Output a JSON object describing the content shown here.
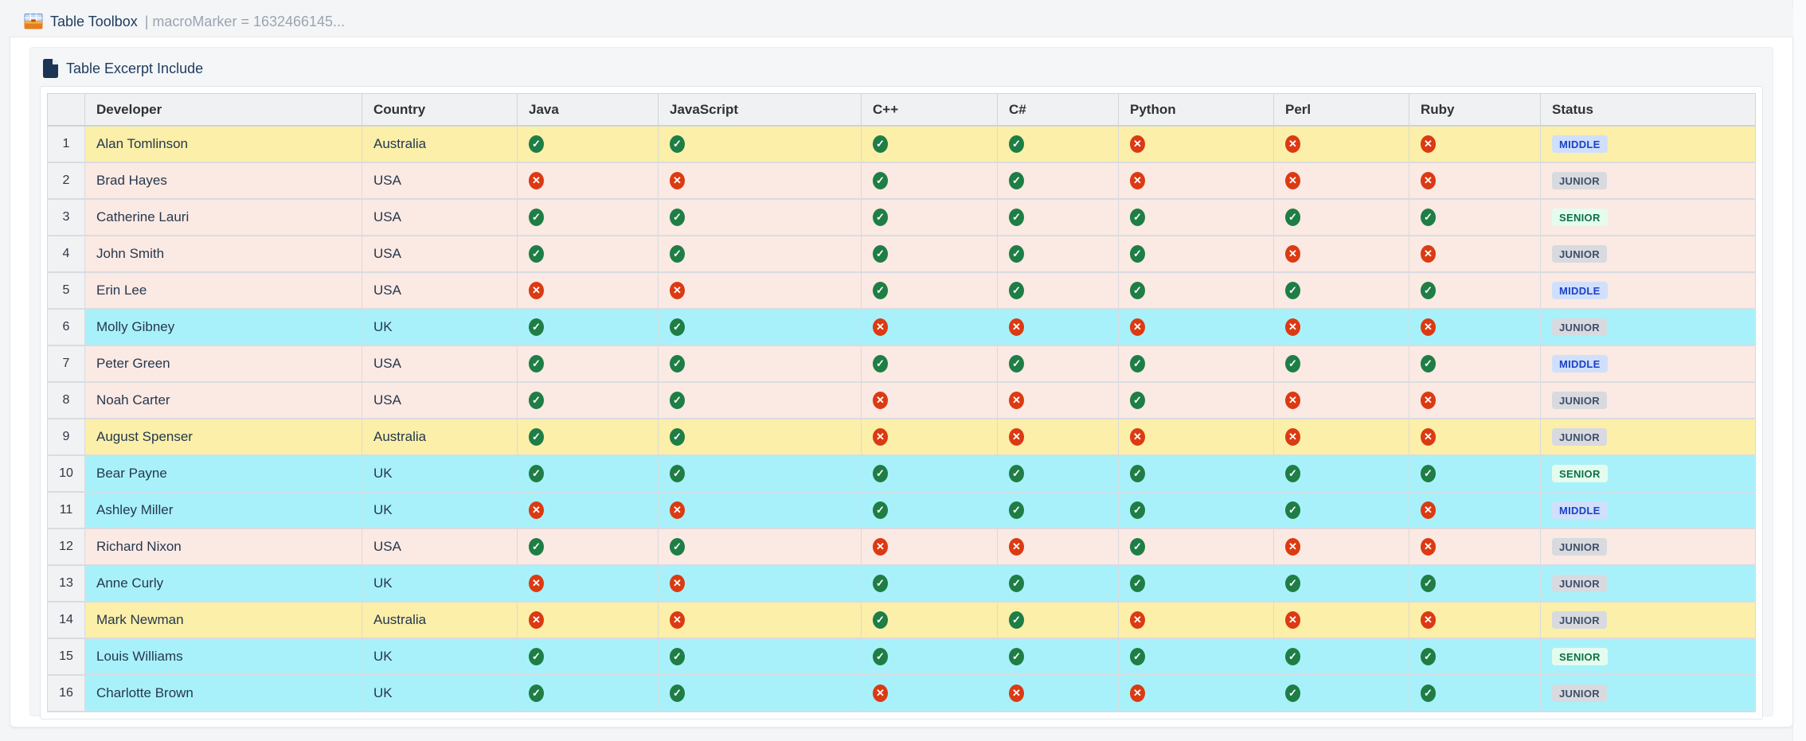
{
  "macro_header": {
    "title": "Table Toolbox",
    "marker": "| macroMarker = 1632466145..."
  },
  "excerpt": {
    "title": "Table Excerpt Include"
  },
  "glyphs": {
    "check": "✓",
    "cross": "✕"
  },
  "colors": {
    "row_yellow": "#FBEFA9",
    "row_pink": "#FBE9E3",
    "row_cyan": "#A9F1FA",
    "check_green": "#1E7E45",
    "cross_red": "#DC3A12",
    "badge_middle_bg": "#D0E0FC",
    "badge_middle_fg": "#1A41C8",
    "badge_junior_bg": "#D8DADF",
    "badge_junior_fg": "#3E4E68",
    "badge_senior_bg": "#E4FCEE",
    "badge_senior_fg": "#0E6F47"
  },
  "table": {
    "columns": [
      {
        "key": "num",
        "label": ""
      },
      {
        "key": "developer",
        "label": "Developer"
      },
      {
        "key": "country",
        "label": "Country"
      },
      {
        "key": "java",
        "label": "Java"
      },
      {
        "key": "javascript",
        "label": "JavaScript"
      },
      {
        "key": "cpp",
        "label": "C++"
      },
      {
        "key": "csharp",
        "label": "C#"
      },
      {
        "key": "python",
        "label": "Python"
      },
      {
        "key": "perl",
        "label": "Perl"
      },
      {
        "key": "ruby",
        "label": "Ruby"
      },
      {
        "key": "status",
        "label": "Status"
      }
    ],
    "skill_keys": [
      "java",
      "javascript",
      "cpp",
      "csharp",
      "python",
      "perl",
      "ruby"
    ],
    "rows": [
      {
        "num": "1",
        "developer": "Alan Tomlinson",
        "country": "Australia",
        "java": true,
        "javascript": true,
        "cpp": true,
        "csharp": true,
        "python": false,
        "perl": false,
        "ruby": false,
        "status": "MIDDLE",
        "highlight": "yellow"
      },
      {
        "num": "2",
        "developer": "Brad Hayes",
        "country": "USA",
        "java": false,
        "javascript": false,
        "cpp": true,
        "csharp": true,
        "python": false,
        "perl": false,
        "ruby": false,
        "status": "JUNIOR",
        "highlight": "pink"
      },
      {
        "num": "3",
        "developer": "Catherine Lauri",
        "country": "USA",
        "java": true,
        "javascript": true,
        "cpp": true,
        "csharp": true,
        "python": true,
        "perl": true,
        "ruby": true,
        "status": "SENIOR",
        "highlight": "pink"
      },
      {
        "num": "4",
        "developer": "John Smith",
        "country": "USA",
        "java": true,
        "javascript": true,
        "cpp": true,
        "csharp": true,
        "python": true,
        "perl": false,
        "ruby": false,
        "status": "JUNIOR",
        "highlight": "pink"
      },
      {
        "num": "5",
        "developer": "Erin Lee",
        "country": "USA",
        "java": false,
        "javascript": false,
        "cpp": true,
        "csharp": true,
        "python": true,
        "perl": true,
        "ruby": true,
        "status": "MIDDLE",
        "highlight": "pink"
      },
      {
        "num": "6",
        "developer": "Molly Gibney",
        "country": "UK",
        "java": true,
        "javascript": true,
        "cpp": false,
        "csharp": false,
        "python": false,
        "perl": false,
        "ruby": false,
        "status": "JUNIOR",
        "highlight": "cyan"
      },
      {
        "num": "7",
        "developer": "Peter Green",
        "country": "USA",
        "java": true,
        "javascript": true,
        "cpp": true,
        "csharp": true,
        "python": true,
        "perl": true,
        "ruby": true,
        "status": "MIDDLE",
        "highlight": "pink"
      },
      {
        "num": "8",
        "developer": "Noah Carter",
        "country": "USA",
        "java": true,
        "javascript": true,
        "cpp": false,
        "csharp": false,
        "python": true,
        "perl": false,
        "ruby": false,
        "status": "JUNIOR",
        "highlight": "pink"
      },
      {
        "num": "9",
        "developer": "August Spenser",
        "country": "Australia",
        "java": true,
        "javascript": true,
        "cpp": false,
        "csharp": false,
        "python": false,
        "perl": false,
        "ruby": false,
        "status": "JUNIOR",
        "highlight": "yellow"
      },
      {
        "num": "10",
        "developer": "Bear Payne",
        "country": "UK",
        "java": true,
        "javascript": true,
        "cpp": true,
        "csharp": true,
        "python": true,
        "perl": true,
        "ruby": true,
        "status": "SENIOR",
        "highlight": "cyan"
      },
      {
        "num": "11",
        "developer": "Ashley Miller",
        "country": "UK",
        "java": false,
        "javascript": false,
        "cpp": true,
        "csharp": true,
        "python": true,
        "perl": true,
        "ruby": false,
        "status": "MIDDLE",
        "highlight": "cyan"
      },
      {
        "num": "12",
        "developer": "Richard Nixon",
        "country": "USA",
        "java": true,
        "javascript": true,
        "cpp": false,
        "csharp": false,
        "python": true,
        "perl": false,
        "ruby": false,
        "status": "JUNIOR",
        "highlight": "pink"
      },
      {
        "num": "13",
        "developer": "Anne Curly",
        "country": "UK",
        "java": false,
        "javascript": false,
        "cpp": true,
        "csharp": true,
        "python": true,
        "perl": true,
        "ruby": true,
        "status": "JUNIOR",
        "highlight": "cyan"
      },
      {
        "num": "14",
        "developer": "Mark Newman",
        "country": "Australia",
        "java": false,
        "javascript": false,
        "cpp": true,
        "csharp": true,
        "python": false,
        "perl": false,
        "ruby": false,
        "status": "JUNIOR",
        "highlight": "yellow"
      },
      {
        "num": "15",
        "developer": "Louis Williams",
        "country": "UK",
        "java": true,
        "javascript": true,
        "cpp": true,
        "csharp": true,
        "python": true,
        "perl": true,
        "ruby": true,
        "status": "SENIOR",
        "highlight": "cyan"
      },
      {
        "num": "16",
        "developer": "Charlotte Brown",
        "country": "UK",
        "java": true,
        "javascript": true,
        "cpp": false,
        "csharp": false,
        "python": false,
        "perl": true,
        "ruby": true,
        "status": "JUNIOR",
        "highlight": "cyan"
      }
    ]
  }
}
